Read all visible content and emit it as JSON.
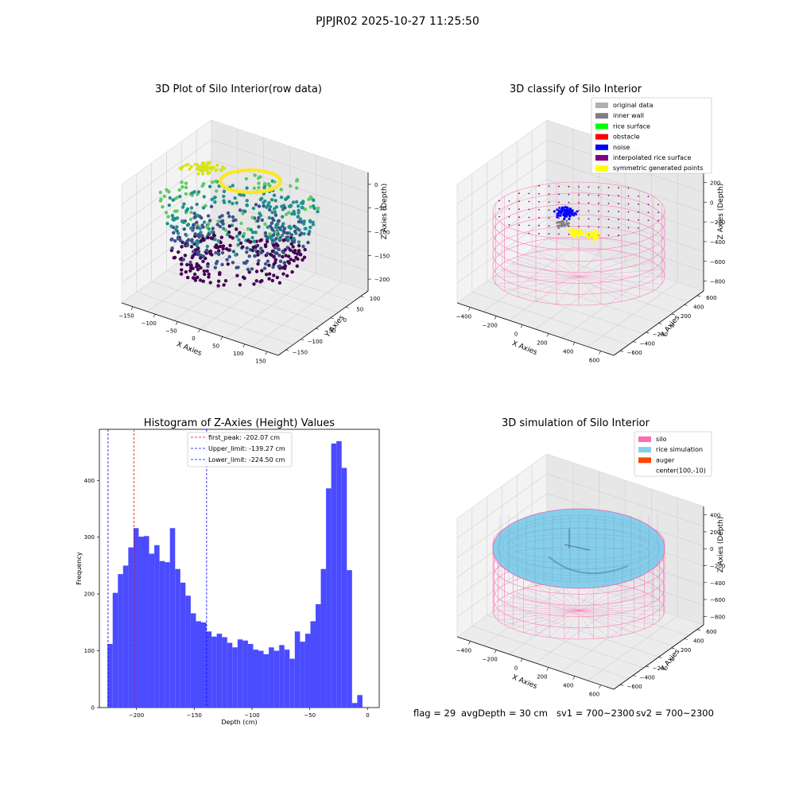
{
  "suptitle": "PJPJR02 2025-10-27 11:25:50",
  "status_line": {
    "flag": "flag = 29",
    "avg_depth": "avgDepth = 30 cm",
    "sv1": "sv1 = 700~2300",
    "sv2": "sv2 = 700~2300"
  },
  "chart_data": [
    {
      "id": "raw",
      "type": "scatter",
      "title": "3D Plot of Silo Interior(row data)",
      "xlabel": "X Axies",
      "ylabel": "Y Axies",
      "zlabel": "Z Axies (Depth)",
      "x_ticks": [
        "−150",
        "−100",
        "−50",
        "0",
        "50",
        "100",
        "150"
      ],
      "y_ticks": [
        "−150",
        "−100",
        "−50",
        "0",
        "50",
        "100"
      ],
      "z_ticks": [
        "0",
        "−50",
        "−100",
        "−150",
        "−200"
      ],
      "xlim": [
        -150,
        150
      ],
      "ylim": [
        -150,
        120
      ],
      "zlim": [
        -225,
        5
      ],
      "colormap": [
        "#440154",
        "#3b528b",
        "#21918c",
        "#5ec962",
        "#fde725"
      ]
    },
    {
      "id": "classify",
      "type": "scatter",
      "title": "3D classify of Silo Interior",
      "xlabel": "X Axies",
      "ylabel": "Y Axies",
      "zlabel": "Z Axies (Depth)",
      "x_ticks": [
        "−400",
        "−200",
        "0",
        "200",
        "400",
        "600"
      ],
      "y_ticks": [
        "−600",
        "−400",
        "−200",
        "0",
        "200",
        "400",
        "600"
      ],
      "z_ticks": [
        "200",
        "0",
        "−200",
        "−400",
        "−600",
        "−800"
      ],
      "legend": [
        {
          "label": "original data",
          "color": "#b0b0b0"
        },
        {
          "label": "inner wall",
          "color": "#808080"
        },
        {
          "label": "rice surface",
          "color": "#00ff00"
        },
        {
          "label": "obstacle",
          "color": "#ff0000"
        },
        {
          "label": "noise",
          "color": "#0000ff"
        },
        {
          "label": "interpolated rice surface",
          "color": "#800080"
        },
        {
          "label": "symmetric generated points",
          "color": "#ffff00"
        }
      ],
      "legend_loc": "upper right",
      "silo_color": "#ff69b4"
    },
    {
      "id": "hist",
      "type": "bar",
      "title": "Histogram of Z-Axies (Height) Values",
      "xlabel": "Depth (cm)",
      "ylabel": "Frequency",
      "bin_start": -225,
      "bin_width": 4.5,
      "values": [
        112,
        202,
        235,
        250,
        282,
        316,
        301,
        302,
        271,
        286,
        258,
        256,
        316,
        244,
        220,
        197,
        166,
        152,
        150,
        134,
        125,
        130,
        124,
        114,
        106,
        120,
        118,
        112,
        102,
        100,
        94,
        106,
        100,
        110,
        102,
        86,
        134,
        116,
        130,
        152,
        182,
        244,
        386,
        465,
        469,
        422,
        242,
        8,
        22
      ],
      "xlim": [
        -232,
        10
      ],
      "ylim": [
        0,
        490
      ],
      "x_ticks": [
        -200,
        -150,
        -100,
        -50,
        0
      ],
      "x_tick_labels": [
        "−200",
        "−150",
        "−100",
        "−50",
        "0"
      ],
      "y_ticks": [
        0,
        100,
        200,
        300,
        400
      ],
      "bar_color": "#4b4bff",
      "vlines": [
        {
          "x": -202.07,
          "color": "#ff0000",
          "label": "first_peak: -202.07 cm"
        },
        {
          "x": -139.27,
          "color": "#0000ff",
          "label": "Upper_limit: -139.27 cm"
        },
        {
          "x": -224.5,
          "color": "#0000ff",
          "label": "Lower_limit: -224.50 cm"
        }
      ],
      "legend_loc": "upper center"
    },
    {
      "id": "sim",
      "type": "surface",
      "title": "3D simulation of Silo Interior",
      "xlabel": "X Axies",
      "ylabel": "Y Axies",
      "zlabel": "Z Axies (Depth)",
      "x_ticks": [
        "−400",
        "−200",
        "0",
        "200",
        "400",
        "600"
      ],
      "y_ticks": [
        "−600",
        "−400",
        "−200",
        "0",
        "200",
        "400",
        "600"
      ],
      "z_ticks": [
        "400",
        "200",
        "0",
        "−200",
        "−400",
        "−600",
        "−800"
      ],
      "legend": [
        {
          "label": "silo",
          "color": "#ff69b4"
        },
        {
          "label": "rice simulation",
          "color": "#87ceeb"
        },
        {
          "label": "auger",
          "color": "#ff4500"
        },
        {
          "label": "center(100,-10)",
          "color": ""
        }
      ],
      "legend_loc": "upper right"
    }
  ]
}
